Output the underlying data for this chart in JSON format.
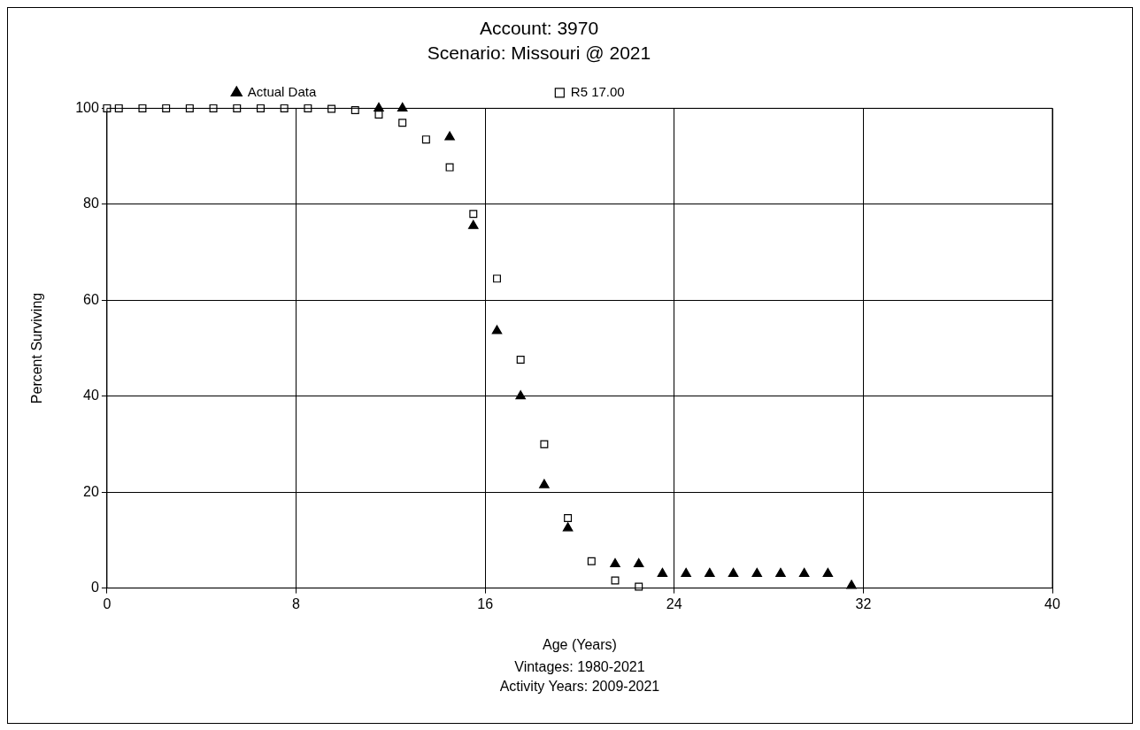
{
  "chart_data": {
    "type": "scatter",
    "title": "Account: 3970",
    "subtitle": "Scenario: Missouri @ 2021",
    "xlabel": "Age (Years)",
    "ylabel": "Percent Surviving",
    "annotations": [
      "Vintages: 1980-2021",
      "Activity Years: 2009-2021"
    ],
    "xlim": [
      0,
      40
    ],
    "xticks": [
      0,
      8,
      16,
      24,
      32,
      40
    ],
    "ylim": [
      0,
      100
    ],
    "yticks": [
      0,
      20,
      40,
      60,
      80,
      100
    ],
    "grid": true,
    "legend": "top",
    "series": [
      {
        "name": "Actual Data",
        "color": "#000000",
        "marker": "triangle",
        "x": [
          11.5,
          12.5,
          14.5,
          15.5,
          16.5,
          17.5,
          18.5,
          19.5,
          21.5,
          22.5,
          23.5,
          24.5,
          25.5,
          26.5,
          27.5,
          28.5,
          29.5,
          30.5,
          31.5
        ],
        "values": [
          100,
          100,
          94,
          75.5,
          53.6,
          40,
          21.5,
          12.5,
          5,
          5,
          3,
          3,
          3,
          3,
          3,
          3,
          3,
          3,
          0.5
        ]
      },
      {
        "name": "R5 17.00",
        "color": "#000000",
        "marker": "square",
        "x": [
          0,
          0.5,
          1.5,
          2.5,
          3.5,
          4.5,
          5.5,
          6.5,
          7.5,
          8.5,
          9.5,
          10.5,
          11.5,
          12.5,
          13.5,
          14.5,
          15.5,
          16.5,
          17.5,
          18.5,
          19.5,
          20.5,
          21.5,
          22.5
        ],
        "values": [
          100,
          100,
          100,
          100,
          100,
          100,
          100,
          100,
          100,
          100,
          99.9,
          99.6,
          98.7,
          97,
          93.5,
          87.7,
          78,
          64.5,
          47.6,
          30,
          14.6,
          5.6,
          1.6,
          0.3
        ]
      }
    ]
  }
}
